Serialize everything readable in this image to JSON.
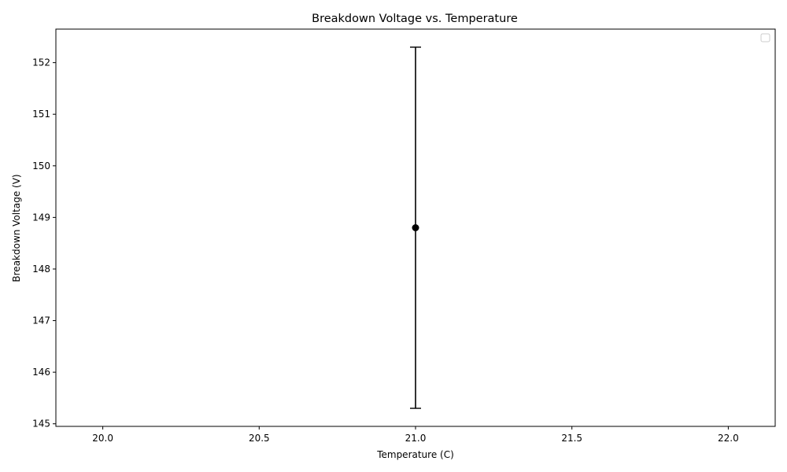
{
  "chart_data": {
    "type": "scatter",
    "title": "Breakdown Voltage vs. Temperature",
    "xlabel": "Temperature (C)",
    "ylabel": "Breakdown Voltage (V)",
    "xlim": [
      19.85,
      22.15
    ],
    "ylim": [
      144.95,
      152.65
    ],
    "x_ticks": [
      "20.0",
      "20.5",
      "21.0",
      "21.5",
      "22.0"
    ],
    "y_ticks": [
      "145",
      "146",
      "147",
      "148",
      "149",
      "150",
      "151",
      "152"
    ],
    "grid": false,
    "legend": "top-right (empty)",
    "points": [
      {
        "x": 21.0,
        "y": 148.8,
        "yerr_low": 145.3,
        "yerr_high": 152.3
      }
    ],
    "color": "#000000"
  }
}
